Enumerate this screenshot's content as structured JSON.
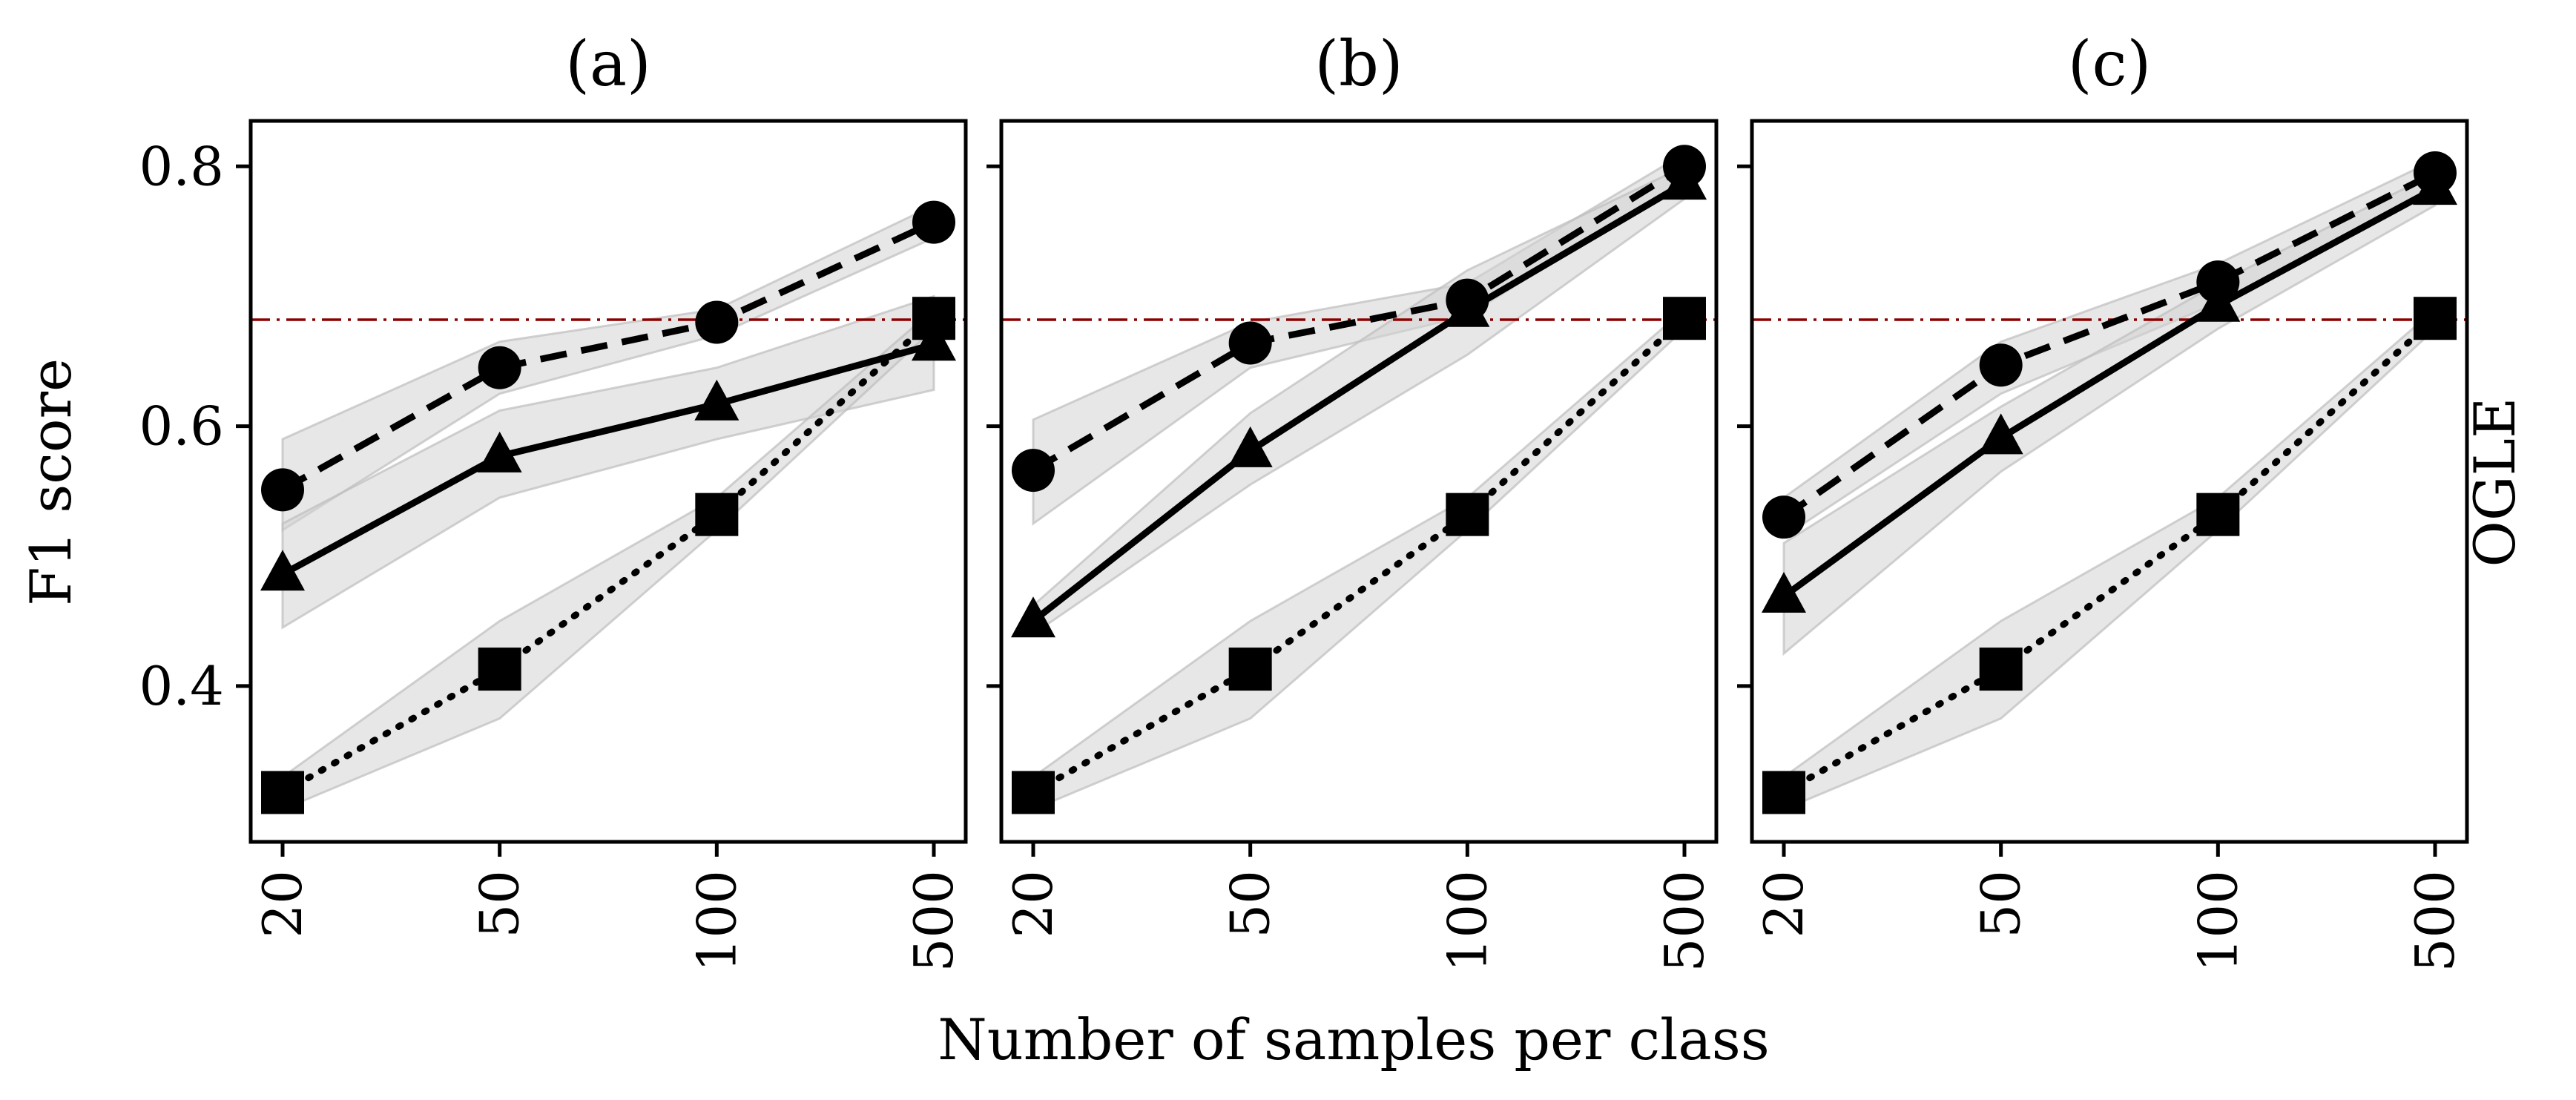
{
  "chart_data": {
    "type": "line",
    "xlabel": "Number of samples per class",
    "ylabel": "F1 score",
    "right_label": "OGLE",
    "ylim": [
      0.28,
      0.835
    ],
    "yticks": [
      0.4,
      0.6,
      0.8
    ],
    "ytick_labels": [
      "0.4",
      "0.6",
      "0.8"
    ],
    "categories": [
      "20",
      "50",
      "100",
      "500"
    ],
    "grid": false,
    "reference_line": {
      "value": 0.682,
      "color": "#8b0000",
      "style": "dash-dot"
    },
    "band_color": "#d3d3d3",
    "panels": [
      {
        "title": "(a)",
        "series": [
          {
            "marker": "circle",
            "linestyle": "dashed",
            "values": [
              0.551,
              0.645,
              0.68,
              0.757
            ],
            "band_low": [
              0.52,
              0.625,
              0.67,
              0.745
            ],
            "band_high": [
              0.59,
              0.665,
              0.69,
              0.77
            ]
          },
          {
            "marker": "triangle",
            "linestyle": "solid",
            "values": [
              0.486,
              0.577,
              0.617,
              0.663
            ],
            "band_low": [
              0.445,
              0.545,
              0.59,
              0.628
            ],
            "band_high": [
              0.525,
              0.612,
              0.645,
              0.7
            ]
          },
          {
            "marker": "square",
            "linestyle": "dotted",
            "values": [
              0.318,
              0.413,
              0.532,
              0.683
            ],
            "band_low": [
              0.305,
              0.375,
              0.52,
              0.675
            ],
            "band_high": [
              0.33,
              0.45,
              0.545,
              0.69
            ]
          }
        ]
      },
      {
        "title": "(b)",
        "series": [
          {
            "marker": "circle",
            "linestyle": "dashed",
            "values": [
              0.566,
              0.664,
              0.697,
              0.8
            ],
            "band_low": [
              0.525,
              0.645,
              0.685,
              0.79
            ],
            "band_high": [
              0.605,
              0.68,
              0.71,
              0.81
            ]
          },
          {
            "marker": "triangle",
            "linestyle": "solid",
            "values": [
              0.45,
              0.581,
              0.689,
              0.787
            ],
            "band_low": [
              0.44,
              0.555,
              0.655,
              0.775
            ],
            "band_high": [
              0.462,
              0.61,
              0.72,
              0.8
            ]
          },
          {
            "marker": "square",
            "linestyle": "dotted",
            "values": [
              0.318,
              0.413,
              0.532,
              0.683
            ],
            "band_low": [
              0.305,
              0.375,
              0.52,
              0.675
            ],
            "band_high": [
              0.33,
              0.45,
              0.545,
              0.69
            ]
          }
        ]
      },
      {
        "title": "(c)",
        "series": [
          {
            "marker": "circle",
            "linestyle": "dashed",
            "values": [
              0.53,
              0.647,
              0.711,
              0.795
            ],
            "band_low": [
              0.515,
              0.625,
              0.695,
              0.785
            ],
            "band_high": [
              0.545,
              0.665,
              0.725,
              0.805
            ]
          },
          {
            "marker": "triangle",
            "linestyle": "solid",
            "values": [
              0.469,
              0.591,
              0.693,
              0.783
            ],
            "band_low": [
              0.425,
              0.565,
              0.675,
              0.77
            ],
            "band_high": [
              0.51,
              0.615,
              0.71,
              0.795
            ]
          },
          {
            "marker": "square",
            "linestyle": "dotted",
            "values": [
              0.318,
              0.413,
              0.532,
              0.683
            ],
            "band_low": [
              0.305,
              0.375,
              0.52,
              0.675
            ],
            "band_high": [
              0.33,
              0.45,
              0.545,
              0.69
            ]
          }
        ]
      }
    ]
  }
}
